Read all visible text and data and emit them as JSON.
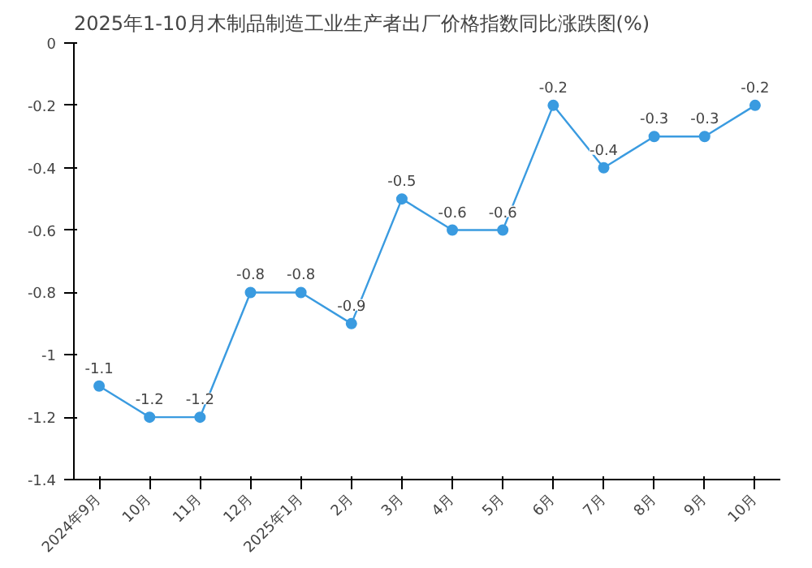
{
  "chart_data": {
    "type": "line",
    "title": "2025年1-10月木制品制造工业生产者出厂价格指数同比涨跌图(%)",
    "categories": [
      "2024年9月",
      "10月",
      "11月",
      "12月",
      "2025年1月",
      "2月",
      "3月",
      "4月",
      "5月",
      "6月",
      "7月",
      "8月",
      "9月",
      "10月"
    ],
    "series": [
      {
        "color": "#3a9be0",
        "values": [
          -1.1,
          -1.2,
          -1.2,
          -0.8,
          -0.8,
          -0.9,
          -0.5,
          -0.6,
          -0.6,
          -0.2,
          -0.4,
          -0.3,
          -0.3,
          -0.2
        ]
      }
    ],
    "ylim": [
      -1.4,
      0
    ],
    "yticks": [
      -1.4,
      -1.2,
      -1,
      -0.8,
      -0.6,
      -0.4,
      -0.2,
      0
    ],
    "data_labels": true,
    "grid": false,
    "marker": "circle",
    "line_style": "solid"
  }
}
